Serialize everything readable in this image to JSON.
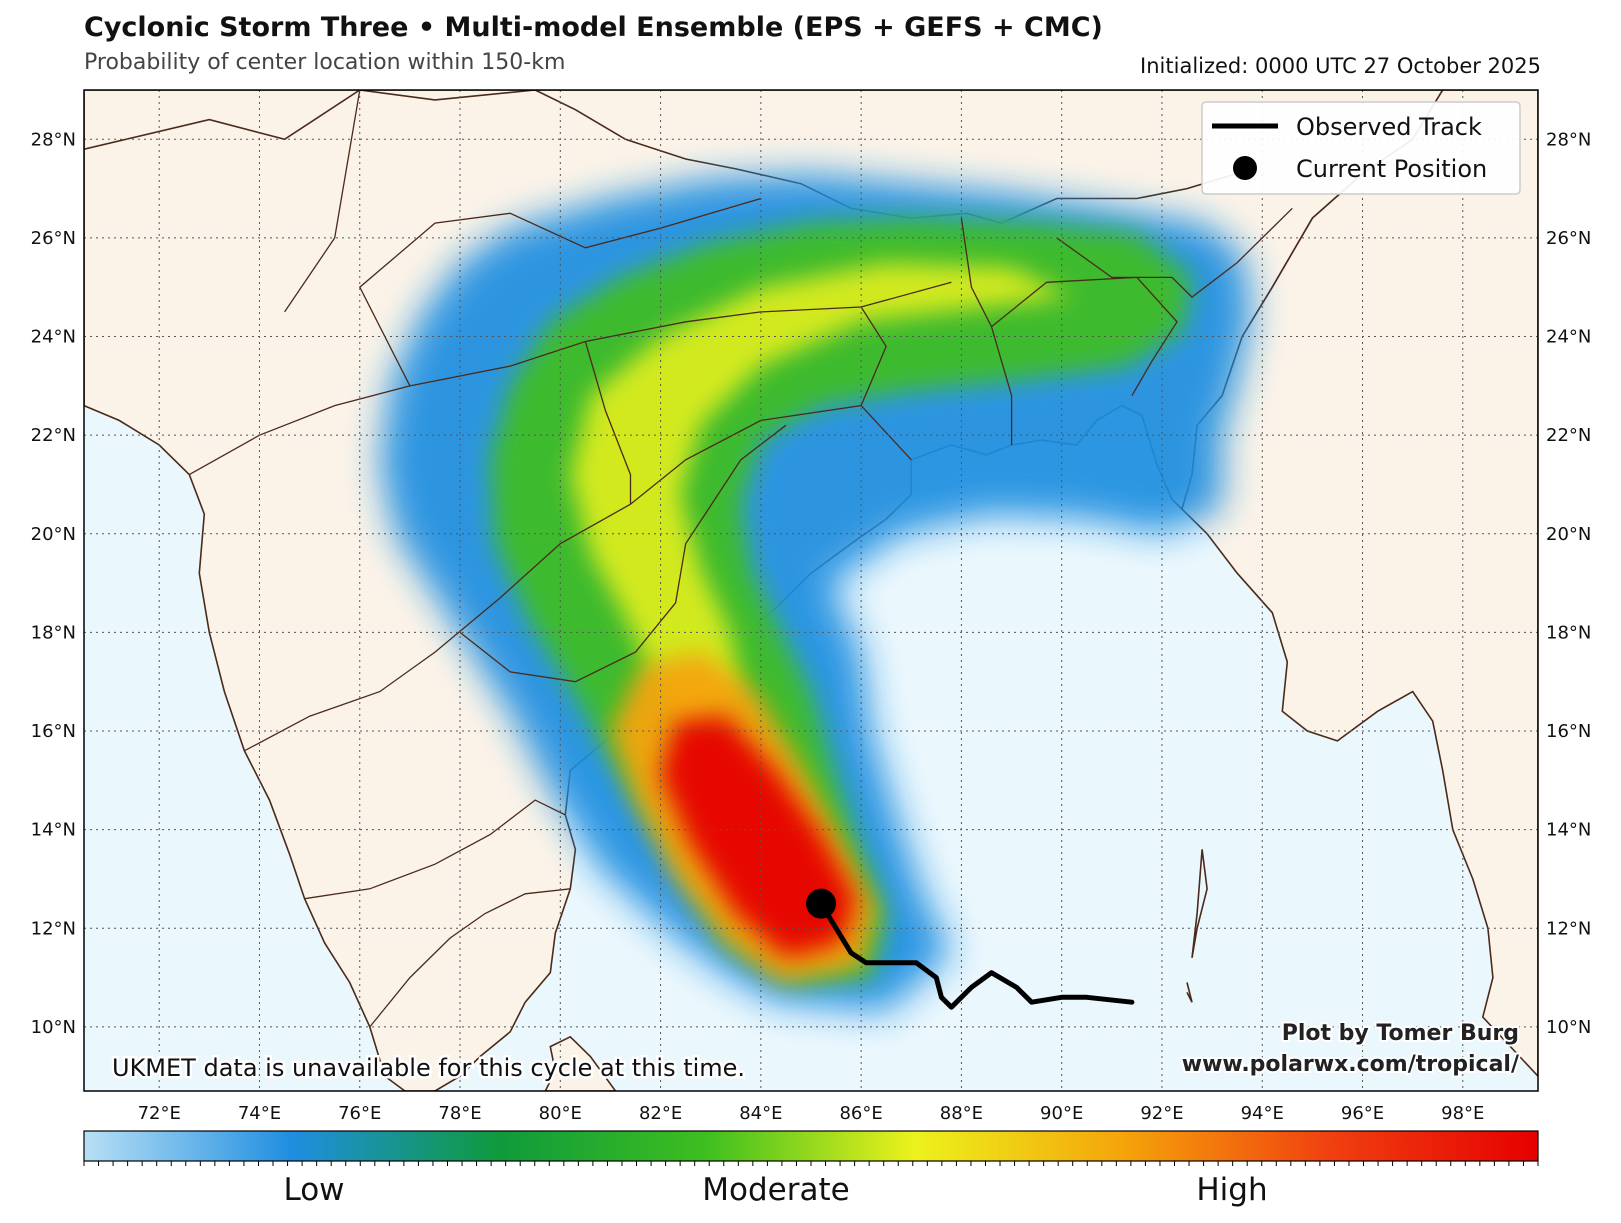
{
  "header": {
    "title": "Cyclonic Storm Three • Multi-model Ensemble (EPS + GEFS + CMC)",
    "subtitle": "Probability of center location within 150-km",
    "initialized": "Initialized: 0000 UTC 27 October 2025"
  },
  "map": {
    "lon_range": [
      70.5,
      99.5
    ],
    "lat_range": [
      8.7,
      29.0
    ],
    "lon_ticks": [
      "72°E",
      "74°E",
      "76°E",
      "78°E",
      "80°E",
      "82°E",
      "84°E",
      "86°E",
      "88°E",
      "90°E",
      "92°E",
      "94°E",
      "96°E",
      "98°E"
    ],
    "lat_ticks": [
      "10°N",
      "12°N",
      "14°N",
      "16°N",
      "18°N",
      "20°N",
      "22°N",
      "24°N",
      "26°N",
      "28°N"
    ],
    "ocean_color": "#eaf7fd",
    "land_color": "#fbf3e8",
    "border_color": "#4a2a1a",
    "observed_track": [
      [
        91.4,
        10.5
      ],
      [
        90.5,
        10.6
      ],
      [
        90.0,
        10.6
      ],
      [
        89.4,
        10.5
      ],
      [
        89.1,
        10.8
      ],
      [
        88.6,
        11.1
      ],
      [
        88.2,
        10.8
      ],
      [
        87.8,
        10.4
      ],
      [
        87.6,
        10.6
      ],
      [
        87.5,
        11.0
      ],
      [
        87.1,
        11.3
      ],
      [
        86.9,
        11.3
      ],
      [
        86.5,
        11.3
      ],
      [
        86.1,
        11.3
      ],
      [
        85.8,
        11.5
      ],
      [
        85.5,
        12.0
      ],
      [
        85.2,
        12.5
      ]
    ],
    "current_position": [
      85.2,
      12.5
    ],
    "note": "UKMET data is unavailable for this cycle at this time.",
    "credit_line1": "Plot by Tomer Burg",
    "credit_line2": "www.polarwx.com/tropical/"
  },
  "legend": {
    "observed_label": "Observed Track",
    "current_label": "Current Position"
  },
  "colorbar": {
    "labels": [
      "Low",
      "Moderate",
      "High"
    ],
    "colors": [
      "#b8e0f5",
      "#1f8ee0",
      "#0f9a3c",
      "#3fbf1f",
      "#ecf21c",
      "#f5a40a",
      "#f04010",
      "#e60000"
    ]
  }
}
